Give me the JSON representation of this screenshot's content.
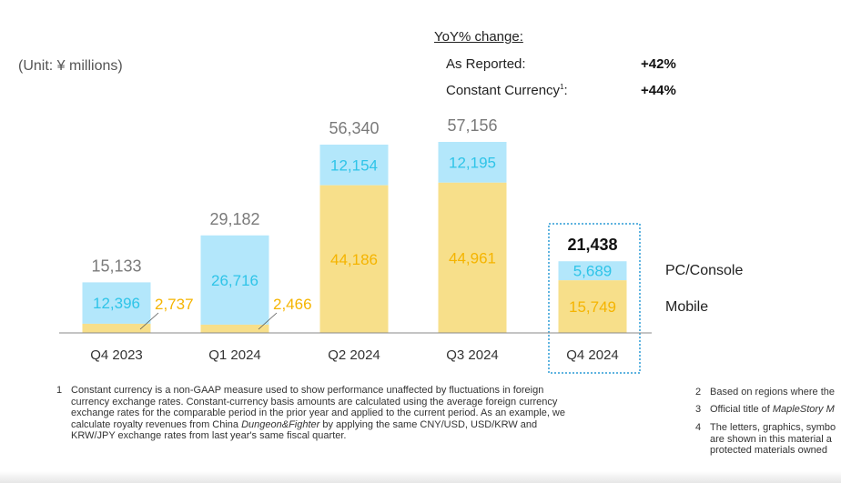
{
  "unit_label": "(Unit: ¥ millions)",
  "yoy": {
    "title": "YoY% change:",
    "reported_label": "As Reported:",
    "reported_value": "+42%",
    "constant_label": "Constant Currency",
    "constant_sup": "1",
    "constant_colon": ":",
    "constant_value": "+44%"
  },
  "colors": {
    "pc_console": "#b3e7fb",
    "mobile": "#f7df8a",
    "pc_text": "#2fc4e8",
    "mobile_text": "#f5b400",
    "highlight_border": "#2b9bd6"
  },
  "chart_data": {
    "type": "bar",
    "stacked": true,
    "categories": [
      "Q4 2023",
      "Q1 2024",
      "Q2 2024",
      "Q3 2024",
      "Q4 2024"
    ],
    "totals": [
      "15,133",
      "29,182",
      "56,340",
      "57,156",
      "21,438"
    ],
    "series": [
      {
        "name": "Mobile",
        "values": [
          2737,
          2466,
          44186,
          44961,
          15749
        ],
        "labels": [
          "2,737",
          "2,466",
          "44,186",
          "44,961",
          "15,749"
        ]
      },
      {
        "name": "PC/Console",
        "values": [
          12396,
          26716,
          12154,
          12195,
          5689
        ],
        "labels": [
          "12,396",
          "26,716",
          "12,154",
          "12,195",
          "5,689"
        ]
      }
    ],
    "highlighted_category": "Q4 2024",
    "legend": [
      "PC/Console",
      "Mobile"
    ],
    "legend_placement": "right"
  },
  "footnotes": {
    "fn1_num": "1",
    "fn1_text_1": "Constant currency is a non-GAAP measure used to show performance unaffected by fluctuations in foreign currency exchange rates. Constant-currency basis amounts are calculated using the average foreign currency exchange rates for the comparable period in the prior year and applied to the current period. As an example, we calculate royalty revenues from China ",
    "fn1_italic": "Dungeon&Fighter",
    "fn1_text_2": " by applying the same CNY/USD, USD/KRW and KRW/JPY exchange rates from last year's same fiscal quarter.",
    "fn2": "Based on regions where the",
    "fn2_num": "2",
    "fn3_num": "3",
    "fn3_a": "Official title of ",
    "fn3_b": "MapleStory M",
    "fn4_num": "4",
    "fn4_l1": "The letters, graphics, symbo",
    "fn4_l2": "are shown in this material a",
    "fn4_l3": "protected materials owned"
  }
}
